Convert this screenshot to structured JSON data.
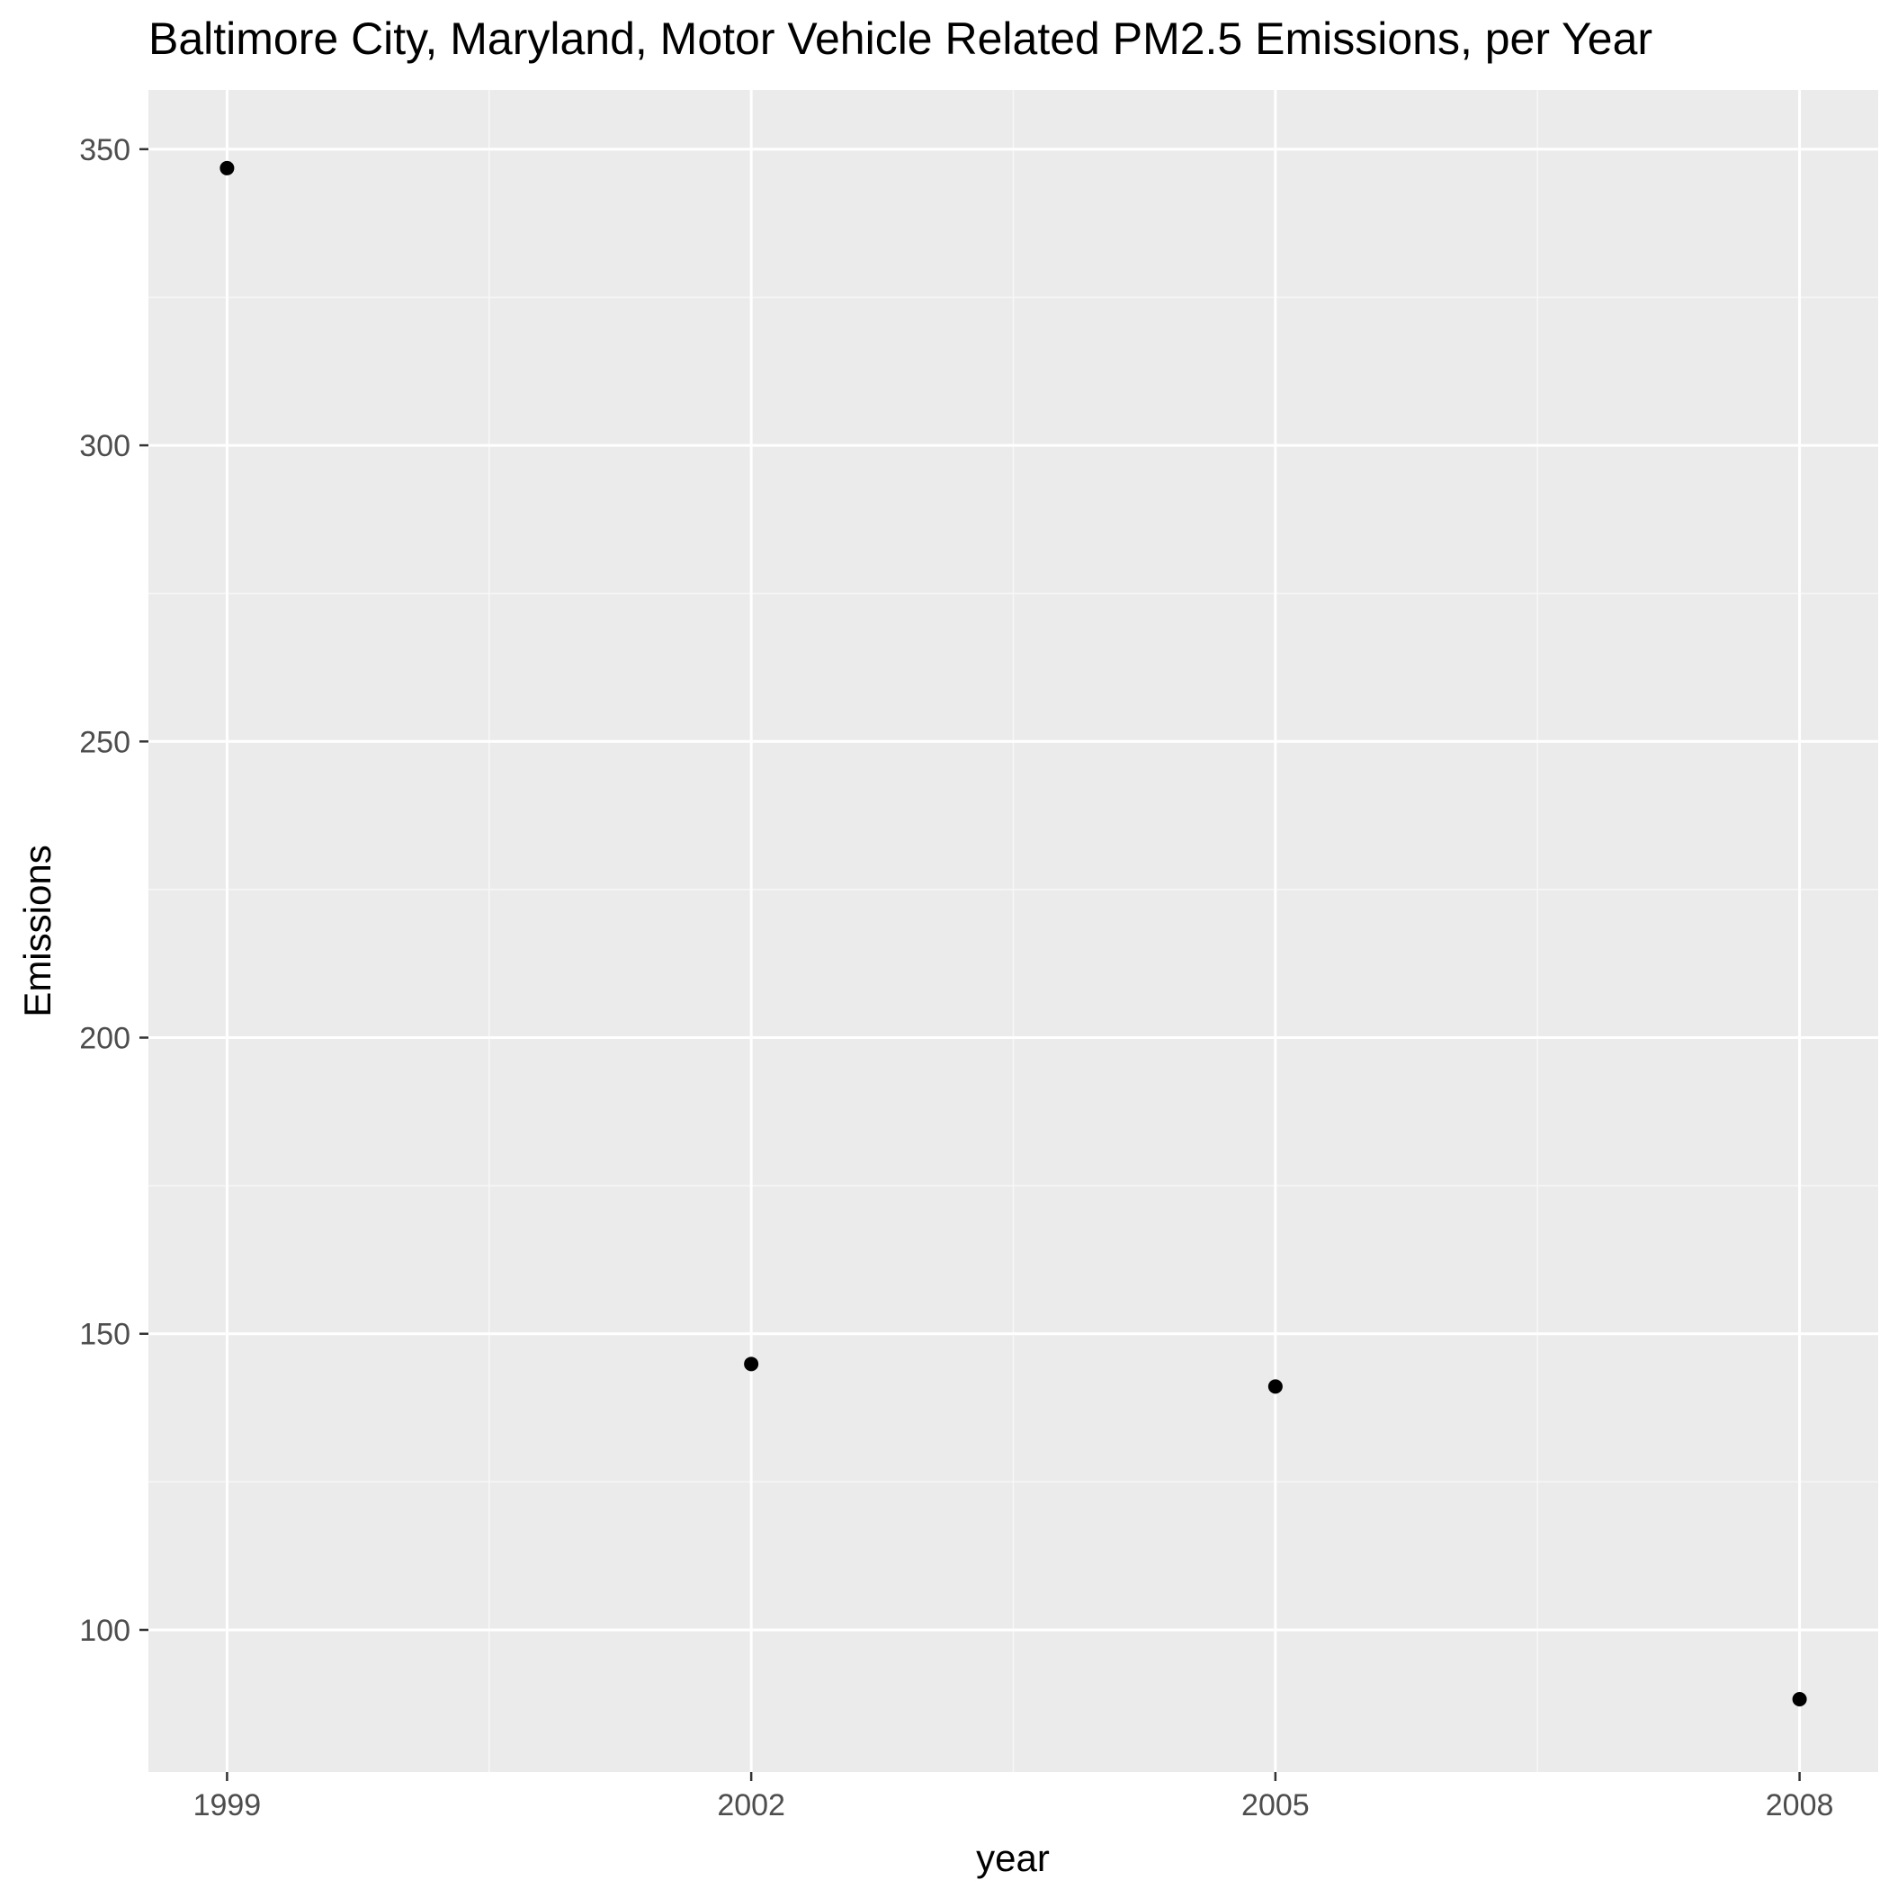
{
  "chart_data": {
    "type": "scatter",
    "title": "Baltimore City, Maryland, Motor Vehicle Related PM2.5 Emissions, per Year",
    "xlabel": "year",
    "ylabel": "Emissions",
    "x": [
      1999,
      2002,
      2005,
      2008
    ],
    "series": [
      {
        "values": [
          346.8,
          144.9,
          141.1,
          88.3
        ]
      }
    ],
    "x_ticks": [
      1999,
      2002,
      2005,
      2008
    ],
    "x_tick_labels": [
      "1999",
      "2002",
      "2005",
      "2008"
    ],
    "y_ticks": [
      100,
      150,
      200,
      250,
      300,
      350
    ],
    "y_tick_labels": [
      "100",
      "150",
      "200",
      "250",
      "300",
      "350"
    ],
    "xlim": [
      1998.55,
      2008.45
    ],
    "ylim": [
      76,
      360
    ],
    "grid": true,
    "legend": "none",
    "colors": {
      "panel_background": "#ebebeb",
      "grid_major": "#ffffff",
      "grid_minor": "#f7f7f7",
      "point": "#000000",
      "tick_mark": "#333333",
      "tick_label": "#4d4d4d"
    }
  }
}
